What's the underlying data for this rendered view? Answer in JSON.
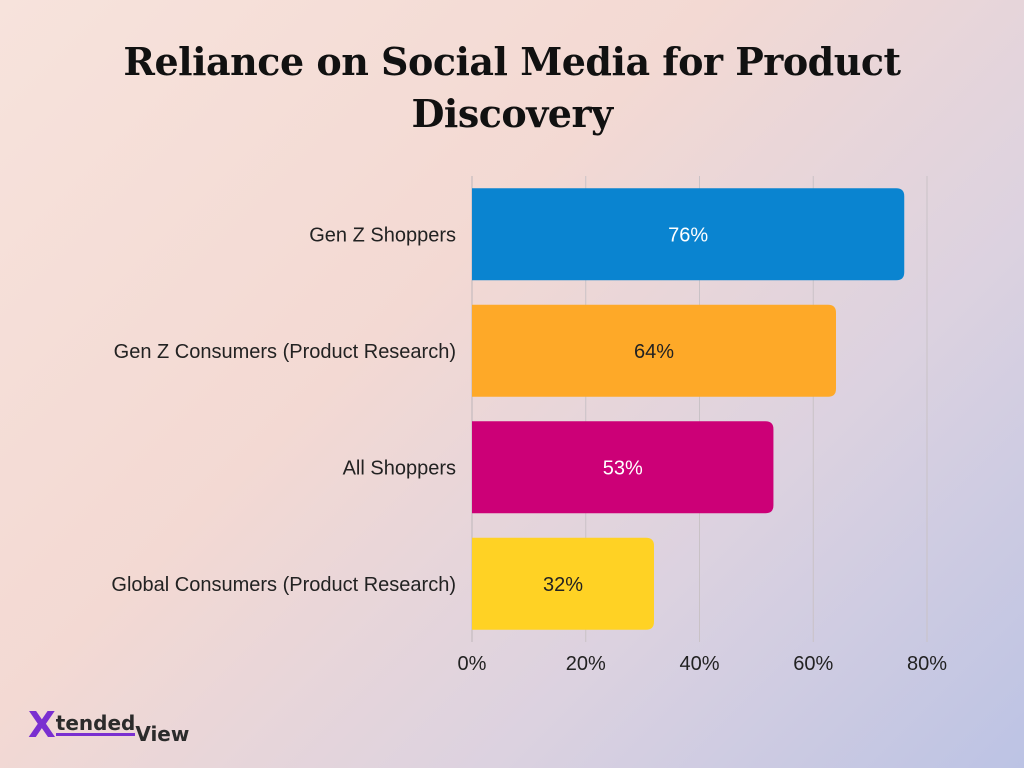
{
  "chart_data": {
    "type": "bar",
    "orientation": "horizontal",
    "title": "Reliance on Social Media for Product Discovery",
    "categories": [
      "Gen Z Shoppers",
      "Gen Z Consumers (Product Research)",
      "All Shoppers",
      "Global Consumers (Product Research)"
    ],
    "values": [
      76,
      64,
      53,
      32
    ],
    "data_labels": [
      "76%",
      "64%",
      "53%",
      "32%"
    ],
    "colors": [
      "#0a84d0",
      "#fea928",
      "#cc0077",
      "#ffd224"
    ],
    "label_colors": [
      "#ffffff",
      "#222222",
      "#ffffff",
      "#222222"
    ],
    "xlim": [
      0,
      80
    ],
    "xticks": [
      0,
      20,
      40,
      60,
      80
    ],
    "xtick_labels": [
      "0%",
      "20%",
      "40%",
      "60%",
      "80%"
    ],
    "grid": true,
    "legend": "none"
  },
  "brand": {
    "logo_x": "X",
    "logo_tended": "tended",
    "logo_view": "View",
    "accent": "#7a2fd0"
  }
}
